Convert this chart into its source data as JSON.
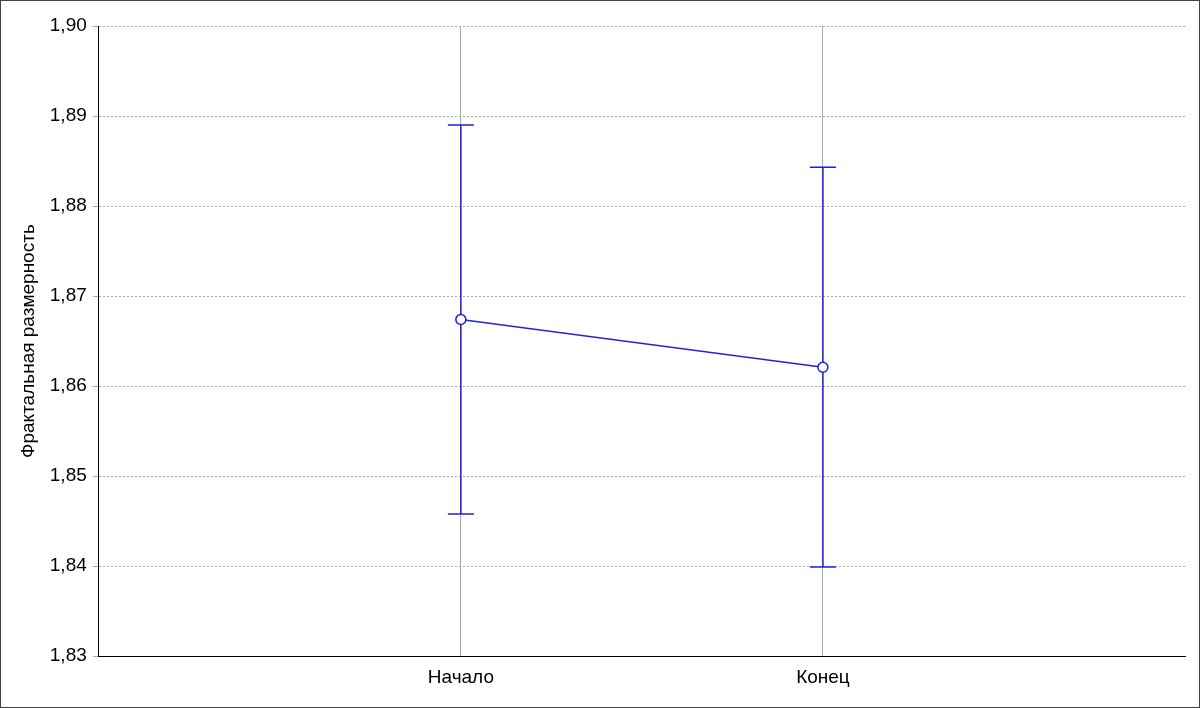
{
  "chart_data": {
    "type": "line",
    "ylabel": "Фрактальная размерность",
    "categories": [
      "Начало",
      "Конец"
    ],
    "series": [
      {
        "color": "#1f1fe0",
        "values": [
          1.8674,
          1.8621
        ],
        "errors": [
          0.0216,
          0.0222
        ]
      }
    ],
    "ylim": [
      1.83,
      1.9
    ],
    "yticks": [
      {
        "value": 1.83,
        "label": "1,83"
      },
      {
        "value": 1.84,
        "label": "1,84"
      },
      {
        "value": 1.85,
        "label": "1,85"
      },
      {
        "value": 1.86,
        "label": "1,86"
      },
      {
        "value": 1.87,
        "label": "1,87"
      },
      {
        "value": 1.88,
        "label": "1,88"
      },
      {
        "value": 1.89,
        "label": "1,89"
      },
      {
        "value": 1.9,
        "label": "1,90"
      }
    ],
    "grid": true,
    "marker": "circle",
    "line_style": "solid",
    "legend": false
  }
}
